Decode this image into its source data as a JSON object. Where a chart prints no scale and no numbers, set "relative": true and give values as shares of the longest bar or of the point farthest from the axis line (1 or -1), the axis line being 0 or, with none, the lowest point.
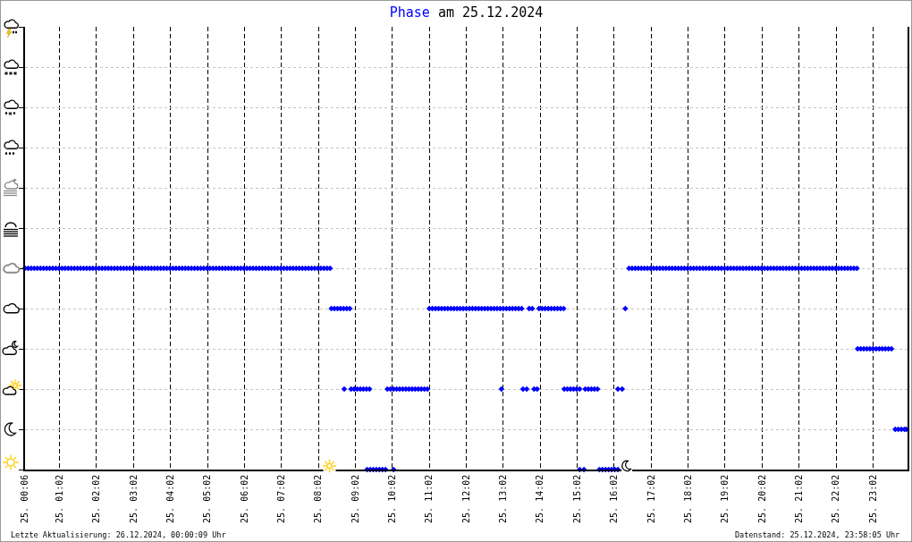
{
  "chart_data": {
    "type": "scatter",
    "title": "am 25.12.2024",
    "marker": "diamond",
    "grid": true,
    "relative": true,
    "annotations": [
      "Letzte Aktualisierung: 26.12.2024, 00:00:09 Uhr",
      "Datenstand: 25.12.2024, 23:58:05 Uhr"
    ],
    "xlim": [
      "2024-12-25T00:06",
      "2024-12-25T23:58"
    ],
    "xticks": [
      {
        "value": "2024-12-25T00:06",
        "label": "25. 00:06"
      },
      {
        "value": "2024-12-25T01:02",
        "label": "25. 01:02"
      },
      {
        "value": "2024-12-25T02:02",
        "label": "25. 02:02"
      },
      {
        "value": "2024-12-25T03:02",
        "label": "25. 03:02"
      },
      {
        "value": "2024-12-25T04:02",
        "label": "25. 04:02"
      },
      {
        "value": "2024-12-25T05:02",
        "label": "25. 05:02"
      },
      {
        "value": "2024-12-25T06:02",
        "label": "25. 06:02"
      },
      {
        "value": "2024-12-25T07:02",
        "label": "25. 07:02"
      },
      {
        "value": "2024-12-25T08:02",
        "label": "25. 08:02"
      },
      {
        "value": "2024-12-25T09:02",
        "label": "25. 09:02"
      },
      {
        "value": "2024-12-25T10:02",
        "label": "25. 10:02"
      },
      {
        "value": "2024-12-25T11:02",
        "label": "25. 11:02"
      },
      {
        "value": "2024-12-25T12:02",
        "label": "25. 12:02"
      },
      {
        "value": "2024-12-25T13:02",
        "label": "25. 13:02"
      },
      {
        "value": "2024-12-25T14:02",
        "label": "25. 14:02"
      },
      {
        "value": "2024-12-25T15:02",
        "label": "25. 15:02"
      },
      {
        "value": "2024-12-25T16:02",
        "label": "25. 16:02"
      },
      {
        "value": "2024-12-25T17:02",
        "label": "25. 17:02"
      },
      {
        "value": "2024-12-25T18:02",
        "label": "25. 18:02"
      },
      {
        "value": "2024-12-25T19:02",
        "label": "25. 19:02"
      },
      {
        "value": "2024-12-25T20:02",
        "label": "25. 20:02"
      },
      {
        "value": "2024-12-25T21:02",
        "label": "25. 21:02"
      },
      {
        "value": "2024-12-25T22:02",
        "label": "25. 22:02"
      },
      {
        "value": "2024-12-25T23:02",
        "label": "25. 23:02"
      }
    ],
    "x": [
      "2024-12-25T00:06",
      "2024-12-25T00:11",
      "2024-12-25T00:16",
      "2024-12-25T00:21",
      "2024-12-25T00:26",
      "2024-12-25T00:31",
      "2024-12-25T00:36",
      "2024-12-25T00:41",
      "2024-12-25T00:46",
      "2024-12-25T00:51",
      "2024-12-25T00:56",
      "2024-12-25T01:01",
      "2024-12-25T01:06",
      "2024-12-25T01:11",
      "2024-12-25T01:16",
      "2024-12-25T01:21",
      "2024-12-25T01:26",
      "2024-12-25T01:31",
      "2024-12-25T01:36",
      "2024-12-25T01:41",
      "2024-12-25T01:46",
      "2024-12-25T01:51",
      "2024-12-25T01:56",
      "2024-12-25T02:01",
      "2024-12-25T02:06",
      "2024-12-25T02:11",
      "2024-12-25T02:16",
      "2024-12-25T02:21",
      "2024-12-25T02:26",
      "2024-12-25T02:31",
      "2024-12-25T02:36",
      "2024-12-25T02:41",
      "2024-12-25T02:46",
      "2024-12-25T02:51",
      "2024-12-25T02:56",
      "2024-12-25T03:01",
      "2024-12-25T03:06",
      "2024-12-25T03:11",
      "2024-12-25T03:16",
      "2024-12-25T03:21",
      "2024-12-25T03:26",
      "2024-12-25T03:31",
      "2024-12-25T03:36",
      "2024-12-25T03:41",
      "2024-12-25T03:46",
      "2024-12-25T03:51",
      "2024-12-25T03:56",
      "2024-12-25T04:01",
      "2024-12-25T04:06",
      "2024-12-25T04:11",
      "2024-12-25T04:16",
      "2024-12-25T04:21",
      "2024-12-25T04:26",
      "2024-12-25T04:31",
      "2024-12-25T04:36",
      "2024-12-25T04:41",
      "2024-12-25T04:46",
      "2024-12-25T04:51",
      "2024-12-25T04:56",
      "2024-12-25T05:01",
      "2024-12-25T05:06",
      "2024-12-25T05:11",
      "2024-12-25T05:16",
      "2024-12-25T05:21",
      "2024-12-25T05:26",
      "2024-12-25T05:31",
      "2024-12-25T05:36",
      "2024-12-25T05:41",
      "2024-12-25T05:46",
      "2024-12-25T05:51",
      "2024-12-25T05:56",
      "2024-12-25T06:01",
      "2024-12-25T06:06",
      "2024-12-25T06:11",
      "2024-12-25T06:16",
      "2024-12-25T06:21",
      "2024-12-25T06:26",
      "2024-12-25T06:31",
      "2024-12-25T06:36",
      "2024-12-25T06:41",
      "2024-12-25T06:46",
      "2024-12-25T06:51",
      "2024-12-25T06:56",
      "2024-12-25T07:01",
      "2024-12-25T07:06",
      "2024-12-25T07:11",
      "2024-12-25T07:16",
      "2024-12-25T07:21",
      "2024-12-25T07:26",
      "2024-12-25T07:31",
      "2024-12-25T07:36",
      "2024-12-25T07:41",
      "2024-12-25T07:46",
      "2024-12-25T07:51",
      "2024-12-25T07:56",
      "2024-12-25T08:01",
      "2024-12-25T08:06",
      "2024-12-25T08:11",
      "2024-12-25T08:16",
      "2024-12-25T08:21",
      "2024-12-25T08:23",
      "2024-12-25T08:28",
      "2024-12-25T08:33",
      "2024-12-25T08:38",
      "2024-12-25T08:43",
      "2024-12-25T08:44",
      "2024-12-25T08:48",
      "2024-12-25T08:53",
      "2024-12-25T08:55",
      "2024-12-25T09:00",
      "2024-12-25T09:05",
      "2024-12-25T09:10",
      "2024-12-25T09:15",
      "2024-12-25T09:20",
      "2024-12-25T09:21",
      "2024-12-25T09:25",
      "2024-12-25T09:26",
      "2024-12-25T09:31",
      "2024-12-25T09:36",
      "2024-12-25T09:41",
      "2024-12-25T09:46",
      "2024-12-25T09:51",
      "2024-12-25T09:54",
      "2024-12-25T09:59",
      "2024-12-25T10:04",
      "2024-12-25T10:04",
      "2024-12-25T10:09",
      "2024-12-25T10:14",
      "2024-12-25T10:19",
      "2024-12-25T10:24",
      "2024-12-25T10:29",
      "2024-12-25T10:34",
      "2024-12-25T10:39",
      "2024-12-25T10:44",
      "2024-12-25T10:49",
      "2024-12-25T10:54",
      "2024-12-25T10:59",
      "2024-12-25T11:02",
      "2024-12-25T11:07",
      "2024-12-25T11:12",
      "2024-12-25T11:17",
      "2024-12-25T11:22",
      "2024-12-25T11:27",
      "2024-12-25T11:32",
      "2024-12-25T11:37",
      "2024-12-25T11:42",
      "2024-12-25T11:47",
      "2024-12-25T11:52",
      "2024-12-25T11:57",
      "2024-12-25T12:02",
      "2024-12-25T12:07",
      "2024-12-25T12:12",
      "2024-12-25T12:17",
      "2024-12-25T12:22",
      "2024-12-25T12:27",
      "2024-12-25T12:32",
      "2024-12-25T12:37",
      "2024-12-25T12:42",
      "2024-12-25T12:47",
      "2024-12-25T12:52",
      "2024-12-25T12:57",
      "2024-12-25T12:59",
      "2024-12-25T13:02",
      "2024-12-25T13:07",
      "2024-12-25T13:12",
      "2024-12-25T13:17",
      "2024-12-25T13:22",
      "2024-12-25T13:27",
      "2024-12-25T13:32",
      "2024-12-25T13:34",
      "2024-12-25T13:40",
      "2024-12-25T13:44",
      "2024-12-25T13:49",
      "2024-12-25T13:52",
      "2024-12-25T13:57",
      "2024-12-25T14:00",
      "2024-12-25T14:05",
      "2024-12-25T14:10",
      "2024-12-25T14:15",
      "2024-12-25T14:20",
      "2024-12-25T14:25",
      "2024-12-25T14:30",
      "2024-12-25T14:35",
      "2024-12-25T14:40",
      "2024-12-25T14:41",
      "2024-12-25T14:46",
      "2024-12-25T14:51",
      "2024-12-25T14:56",
      "2024-12-25T15:01",
      "2024-12-25T15:06",
      "2024-12-25T15:06",
      "2024-12-25T15:13",
      "2024-12-25T15:15",
      "2024-12-25T15:20",
      "2024-12-25T15:25",
      "2024-12-25T15:30",
      "2024-12-25T15:35",
      "2024-12-25T15:38",
      "2024-12-25T15:43",
      "2024-12-25T15:48",
      "2024-12-25T15:53",
      "2024-12-25T15:58",
      "2024-12-25T16:03",
      "2024-12-25T16:08",
      "2024-12-25T16:08",
      "2024-12-25T16:15",
      "2024-12-25T16:20",
      "2024-12-25T16:26",
      "2024-12-25T16:31",
      "2024-12-25T16:36",
      "2024-12-25T16:41",
      "2024-12-25T16:46",
      "2024-12-25T16:51",
      "2024-12-25T16:56",
      "2024-12-25T17:01",
      "2024-12-25T17:06",
      "2024-12-25T17:11",
      "2024-12-25T17:16",
      "2024-12-25T17:21",
      "2024-12-25T17:26",
      "2024-12-25T17:31",
      "2024-12-25T17:36",
      "2024-12-25T17:41",
      "2024-12-25T17:46",
      "2024-12-25T17:51",
      "2024-12-25T17:56",
      "2024-12-25T18:01",
      "2024-12-25T18:06",
      "2024-12-25T18:11",
      "2024-12-25T18:16",
      "2024-12-25T18:21",
      "2024-12-25T18:26",
      "2024-12-25T18:31",
      "2024-12-25T18:36",
      "2024-12-25T18:41",
      "2024-12-25T18:46",
      "2024-12-25T18:51",
      "2024-12-25T18:56",
      "2024-12-25T19:01",
      "2024-12-25T19:06",
      "2024-12-25T19:11",
      "2024-12-25T19:16",
      "2024-12-25T19:21",
      "2024-12-25T19:26",
      "2024-12-25T19:31",
      "2024-12-25T19:36",
      "2024-12-25T19:41",
      "2024-12-25T19:46",
      "2024-12-25T19:51",
      "2024-12-25T19:56",
      "2024-12-25T20:01",
      "2024-12-25T20:06",
      "2024-12-25T20:11",
      "2024-12-25T20:16",
      "2024-12-25T20:21",
      "2024-12-25T20:26",
      "2024-12-25T20:31",
      "2024-12-25T20:36",
      "2024-12-25T20:41",
      "2024-12-25T20:46",
      "2024-12-25T20:51",
      "2024-12-25T20:56",
      "2024-12-25T21:01",
      "2024-12-25T21:06",
      "2024-12-25T21:11",
      "2024-12-25T21:16",
      "2024-12-25T21:21",
      "2024-12-25T21:26",
      "2024-12-25T21:31",
      "2024-12-25T21:36",
      "2024-12-25T21:41",
      "2024-12-25T21:46",
      "2024-12-25T21:51",
      "2024-12-25T21:56",
      "2024-12-25T22:01",
      "2024-12-25T22:06",
      "2024-12-25T22:11",
      "2024-12-25T22:16",
      "2024-12-25T22:21",
      "2024-12-25T22:26",
      "2024-12-25T22:31",
      "2024-12-25T22:36",
      "2024-12-25T22:37",
      "2024-12-25T22:42",
      "2024-12-25T22:47",
      "2024-12-25T22:52",
      "2024-12-25T22:57",
      "2024-12-25T23:02",
      "2024-12-25T23:07",
      "2024-12-25T23:12",
      "2024-12-25T23:17",
      "2024-12-25T23:22",
      "2024-12-25T23:27",
      "2024-12-25T23:32",
      "2024-12-25T23:38",
      "2024-12-25T23:43",
      "2024-12-25T23:48",
      "2024-12-25T23:53",
      "2024-12-25T23:56"
    ],
    "series": [
      {
        "name": "Phase",
        "color": "#0000ff",
        "values": [
          1,
          1,
          1,
          1,
          1,
          1,
          1,
          1,
          1,
          1,
          1,
          1,
          1,
          1,
          1,
          1,
          1,
          1,
          1,
          1,
          1,
          1,
          1,
          1,
          1,
          1,
          1,
          1,
          1,
          1,
          1,
          1,
          1,
          1,
          1,
          1,
          1,
          1,
          1,
          1,
          1,
          1,
          1,
          1,
          1,
          1,
          1,
          1,
          1,
          1,
          1,
          1,
          1,
          1,
          1,
          1,
          1,
          1,
          1,
          1,
          1,
          1,
          1,
          1,
          1,
          1,
          1,
          1,
          1,
          1,
          1,
          1,
          1,
          1,
          1,
          1,
          1,
          1,
          1,
          1,
          1,
          1,
          1,
          1,
          1,
          1,
          1,
          1,
          1,
          1,
          1,
          1,
          1,
          1,
          1,
          1,
          1,
          1,
          1,
          1,
          0.8,
          0.8,
          0.8,
          0.8,
          0.8,
          0.4,
          0.8,
          0.8,
          0.4,
          0.4,
          0.4,
          0.4,
          0.4,
          0.4,
          0,
          0.4,
          0,
          0,
          0,
          0,
          0,
          0,
          0.4,
          0.4,
          0.4,
          0,
          0.4,
          0.4,
          0.4,
          0.4,
          0.4,
          0.4,
          0.4,
          0.4,
          0.4,
          0.4,
          0.4,
          0.8,
          0.8,
          0.8,
          0.8,
          0.8,
          0.8,
          0.8,
          0.8,
          0.8,
          0.8,
          0.8,
          0.8,
          0.8,
          0.8,
          0.8,
          0.8,
          0.8,
          0.8,
          0.8,
          0.8,
          0.8,
          0.8,
          0.8,
          0.8,
          0.4,
          0.8,
          0.8,
          0.8,
          0.8,
          0.8,
          0.8,
          0.8,
          0.4,
          0.4,
          0.8,
          0.8,
          0.4,
          0.4,
          0.8,
          0.8,
          0.8,
          0.8,
          0.8,
          0.8,
          0.8,
          0.8,
          0.8,
          0.4,
          0.4,
          0.4,
          0.4,
          0.4,
          0.4,
          0,
          0,
          0.4,
          0.4,
          0.4,
          0.4,
          0.4,
          0,
          0,
          0,
          0,
          0,
          0,
          0,
          0.4,
          0.4,
          0.8,
          1,
          1,
          1,
          1,
          1,
          1,
          1,
          1,
          1,
          1,
          1,
          1,
          1,
          1,
          1,
          1,
          1,
          1,
          1,
          1,
          1,
          1,
          1,
          1,
          1,
          1,
          1,
          1,
          1,
          1,
          1,
          1,
          1,
          1,
          1,
          1,
          1,
          1,
          1,
          1,
          1,
          1,
          1,
          1,
          1,
          1,
          1,
          1,
          1,
          1,
          1,
          1,
          1,
          1,
          1,
          1,
          1,
          1,
          1,
          1,
          1,
          1,
          1,
          1,
          1,
          1,
          1,
          1,
          1,
          1,
          1,
          1,
          1,
          1,
          1,
          0.6,
          0.6,
          0.6,
          0.6,
          0.6,
          0.6,
          0.6,
          0.6,
          0.6,
          0.6,
          0.6,
          0.6,
          0.2,
          0.2,
          0.2,
          0.2,
          0.2
        ]
      }
    ]
  }
}
